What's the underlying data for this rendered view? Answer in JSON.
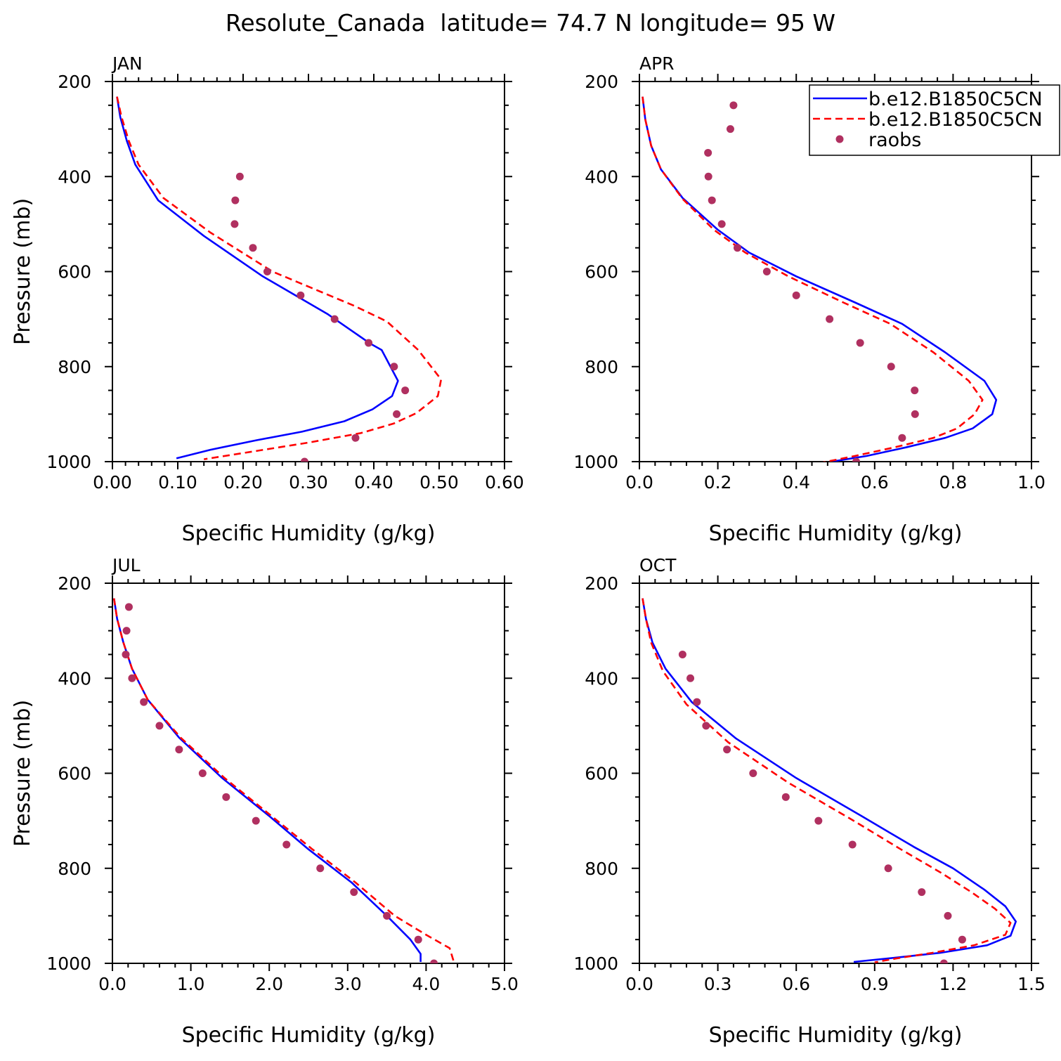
{
  "figure_title": "Resolute_Canada  latitude= 74.7 N longitude= 95 W",
  "legend": {
    "entries": [
      {
        "label": "b.e12.B1850C5CN",
        "style": "line",
        "color": "#0000ff"
      },
      {
        "label": "b.e12.B1850C5CN",
        "style": "dash",
        "color": "#ff0000"
      },
      {
        "label": "raobs",
        "style": "marker",
        "color": "#b03060"
      }
    ]
  },
  "chart_data": [
    {
      "type": "line",
      "panel_label": "JAN",
      "xlabel": "Specific Humidity (g/kg)",
      "ylabel": "Pressure (mb)",
      "xlim": [
        0,
        0.6
      ],
      "ylim": [
        200,
        1000
      ],
      "y_inverted": true,
      "xticks": [
        0,
        0.1,
        0.2,
        0.3,
        0.4,
        0.5,
        0.6
      ],
      "xtick_labels": [
        "0.00",
        "0.10",
        "0.20",
        "0.30",
        "0.40",
        "0.50",
        "0.60"
      ],
      "yticks": [
        200,
        400,
        600,
        800,
        1000
      ],
      "ytick_labels": [
        "200",
        "400",
        "600",
        "800",
        "1000"
      ],
      "series": [
        {
          "style": "line",
          "color": "#0000ff",
          "points": [
            [
              0.007,
              232
            ],
            [
              0.012,
              275
            ],
            [
              0.022,
              325
            ],
            [
              0.035,
              375
            ],
            [
              0.07,
              450
            ],
            [
              0.14,
              525
            ],
            [
              0.23,
              610
            ],
            [
              0.33,
              690
            ],
            [
              0.395,
              752
            ],
            [
              0.412,
              765
            ],
            [
              0.437,
              830
            ],
            [
              0.428,
              862
            ],
            [
              0.398,
              890
            ],
            [
              0.355,
              915
            ],
            [
              0.29,
              937
            ],
            [
              0.22,
              955
            ],
            [
              0.15,
              975
            ],
            [
              0.098,
              993
            ]
          ]
        },
        {
          "style": "dash",
          "color": "#ff0000",
          "points": [
            [
              0.007,
              232
            ],
            [
              0.014,
              275
            ],
            [
              0.025,
              325
            ],
            [
              0.04,
              375
            ],
            [
              0.078,
              445
            ],
            [
              0.15,
              518
            ],
            [
              0.245,
              600
            ],
            [
              0.37,
              672
            ],
            [
              0.42,
              705
            ],
            [
              0.468,
              765
            ],
            [
              0.503,
              827
            ],
            [
              0.498,
              862
            ],
            [
              0.465,
              898
            ],
            [
              0.43,
              920
            ],
            [
              0.38,
              940
            ],
            [
              0.3,
              960
            ],
            [
              0.2,
              982
            ],
            [
              0.14,
              995
            ]
          ]
        },
        {
          "style": "marker",
          "color": "#b03060",
          "points": [
            [
              0.195,
              400
            ],
            [
              0.188,
              450
            ],
            [
              0.187,
              500
            ],
            [
              0.215,
              550
            ],
            [
              0.237,
              600
            ],
            [
              0.288,
              650
            ],
            [
              0.34,
              700
            ],
            [
              0.392,
              750
            ],
            [
              0.431,
              800
            ],
            [
              0.448,
              850
            ],
            [
              0.435,
              900
            ],
            [
              0.372,
              950
            ],
            [
              0.294,
              1000
            ]
          ]
        }
      ]
    },
    {
      "type": "line",
      "panel_label": "APR",
      "xlabel": "Specific Humidity (g/kg)",
      "ylabel": "",
      "xlim": [
        0,
        1.0
      ],
      "ylim": [
        200,
        1000
      ],
      "y_inverted": true,
      "xticks": [
        0,
        0.2,
        0.4,
        0.6,
        0.8,
        1.0
      ],
      "xtick_labels": [
        "0.0",
        "0.2",
        "0.4",
        "0.6",
        "0.8",
        "1.0"
      ],
      "yticks": [
        200,
        400,
        600,
        800,
        1000
      ],
      "ytick_labels": [
        "200",
        "400",
        "600",
        "800",
        "1000"
      ],
      "series": [
        {
          "style": "line",
          "color": "#0000ff",
          "points": [
            [
              0.008,
              232
            ],
            [
              0.015,
              280
            ],
            [
              0.03,
              335
            ],
            [
              0.055,
              385
            ],
            [
              0.11,
              445
            ],
            [
              0.2,
              512
            ],
            [
              0.28,
              560
            ],
            [
              0.4,
              610
            ],
            [
              0.55,
              665
            ],
            [
              0.67,
              710
            ],
            [
              0.78,
              770
            ],
            [
              0.88,
              830
            ],
            [
              0.91,
              870
            ],
            [
              0.9,
              900
            ],
            [
              0.85,
              930
            ],
            [
              0.78,
              950
            ],
            [
              0.68,
              970
            ],
            [
              0.58,
              988
            ],
            [
              0.49,
              1000
            ]
          ]
        },
        {
          "style": "dash",
          "color": "#ff0000",
          "points": [
            [
              0.008,
              232
            ],
            [
              0.015,
              280
            ],
            [
              0.03,
              335
            ],
            [
              0.055,
              385
            ],
            [
              0.11,
              447
            ],
            [
              0.19,
              512
            ],
            [
              0.27,
              560
            ],
            [
              0.38,
              610
            ],
            [
              0.52,
              665
            ],
            [
              0.64,
              710
            ],
            [
              0.75,
              770
            ],
            [
              0.84,
              830
            ],
            [
              0.875,
              870
            ],
            [
              0.855,
              900
            ],
            [
              0.81,
              930
            ],
            [
              0.75,
              950
            ],
            [
              0.65,
              970
            ],
            [
              0.55,
              988
            ],
            [
              0.46,
              1003
            ]
          ]
        },
        {
          "style": "marker",
          "color": "#b03060",
          "points": [
            [
              0.24,
              250
            ],
            [
              0.232,
              300
            ],
            [
              0.175,
              350
            ],
            [
              0.176,
              400
            ],
            [
              0.185,
              450
            ],
            [
              0.21,
              500
            ],
            [
              0.25,
              550
            ],
            [
              0.325,
              600
            ],
            [
              0.4,
              650
            ],
            [
              0.485,
              700
            ],
            [
              0.563,
              750
            ],
            [
              0.642,
              800
            ],
            [
              0.702,
              850
            ],
            [
              0.703,
              900
            ],
            [
              0.67,
              950
            ],
            [
              0.553,
              1000
            ]
          ]
        }
      ]
    },
    {
      "type": "line",
      "panel_label": "JUL",
      "xlabel": "Specific Humidity (g/kg)",
      "ylabel": "Pressure (mb)",
      "xlim": [
        0,
        5.0
      ],
      "ylim": [
        200,
        1000
      ],
      "y_inverted": true,
      "xticks": [
        0,
        1,
        2,
        3,
        4,
        5
      ],
      "xtick_labels": [
        "0.0",
        "1.0",
        "2.0",
        "3.0",
        "4.0",
        "5.0"
      ],
      "yticks": [
        200,
        400,
        600,
        800,
        1000
      ],
      "ytick_labels": [
        "200",
        "400",
        "600",
        "800",
        "1000"
      ],
      "series": [
        {
          "style": "line",
          "color": "#0000ff",
          "points": [
            [
              0.02,
              232
            ],
            [
              0.06,
              275
            ],
            [
              0.14,
              325
            ],
            [
              0.25,
              380
            ],
            [
              0.45,
              445
            ],
            [
              0.85,
              525
            ],
            [
              1.4,
              610
            ],
            [
              2.0,
              690
            ],
            [
              2.5,
              760
            ],
            [
              3.05,
              830
            ],
            [
              3.5,
              900
            ],
            [
              3.8,
              950
            ],
            [
              3.93,
              980
            ],
            [
              3.93,
              997
            ]
          ]
        },
        {
          "style": "dash",
          "color": "#ff0000",
          "points": [
            [
              0.02,
              232
            ],
            [
              0.06,
              275
            ],
            [
              0.14,
              325
            ],
            [
              0.25,
              380
            ],
            [
              0.45,
              445
            ],
            [
              0.87,
              525
            ],
            [
              1.43,
              610
            ],
            [
              2.03,
              690
            ],
            [
              2.55,
              760
            ],
            [
              3.1,
              830
            ],
            [
              3.6,
              900
            ],
            [
              4.0,
              940
            ],
            [
              4.3,
              968
            ],
            [
              4.35,
              995
            ]
          ]
        },
        {
          "style": "marker",
          "color": "#b03060",
          "points": [
            [
              0.21,
              250
            ],
            [
              0.18,
              300
            ],
            [
              0.17,
              350
            ],
            [
              0.25,
              400
            ],
            [
              0.4,
              450
            ],
            [
              0.6,
              500
            ],
            [
              0.85,
              550
            ],
            [
              1.15,
              600
            ],
            [
              1.45,
              650
            ],
            [
              1.83,
              700
            ],
            [
              2.22,
              750
            ],
            [
              2.65,
              800
            ],
            [
              3.08,
              850
            ],
            [
              3.5,
              900
            ],
            [
              3.9,
              950
            ],
            [
              4.1,
              1000
            ]
          ]
        }
      ]
    },
    {
      "type": "line",
      "panel_label": "OCT",
      "xlabel": "Specific Humidity (g/kg)",
      "ylabel": "",
      "xlim": [
        0,
        1.5
      ],
      "ylim": [
        200,
        1000
      ],
      "y_inverted": true,
      "xticks": [
        0,
        0.3,
        0.6,
        0.9,
        1.2,
        1.5
      ],
      "xtick_labels": [
        "0.0",
        "0.3",
        "0.6",
        "0.9",
        "1.2",
        "1.5"
      ],
      "yticks": [
        200,
        400,
        600,
        800,
        1000
      ],
      "ytick_labels": [
        "200",
        "400",
        "600",
        "800",
        "1000"
      ],
      "series": [
        {
          "style": "line",
          "color": "#0000ff",
          "points": [
            [
              0.012,
              232
            ],
            [
              0.025,
              275
            ],
            [
              0.05,
              325
            ],
            [
              0.1,
              380
            ],
            [
              0.2,
              450
            ],
            [
              0.37,
              527
            ],
            [
              0.6,
              610
            ],
            [
              0.85,
              690
            ],
            [
              1.05,
              755
            ],
            [
              1.2,
              800
            ],
            [
              1.32,
              845
            ],
            [
              1.4,
              880
            ],
            [
              1.44,
              912
            ],
            [
              1.42,
              942
            ],
            [
              1.33,
              962
            ],
            [
              1.15,
              978
            ],
            [
              0.98,
              988
            ],
            [
              0.82,
              997
            ]
          ]
        },
        {
          "style": "dash",
          "color": "#ff0000",
          "points": [
            [
              0.012,
              232
            ],
            [
              0.025,
              275
            ],
            [
              0.045,
              325
            ],
            [
              0.09,
              385
            ],
            [
              0.18,
              455
            ],
            [
              0.34,
              535
            ],
            [
              0.57,
              620
            ],
            [
              0.82,
              700
            ],
            [
              1.0,
              760
            ],
            [
              1.15,
              808
            ],
            [
              1.27,
              850
            ],
            [
              1.36,
              885
            ],
            [
              1.42,
              915
            ],
            [
              1.4,
              940
            ],
            [
              1.28,
              962
            ],
            [
              1.12,
              978
            ],
            [
              0.98,
              990
            ],
            [
              0.9,
              998
            ]
          ]
        },
        {
          "style": "marker",
          "color": "#b03060",
          "points": [
            [
              0.165,
              350
            ],
            [
              0.195,
              400
            ],
            [
              0.22,
              450
            ],
            [
              0.255,
              500
            ],
            [
              0.335,
              550
            ],
            [
              0.435,
              600
            ],
            [
              0.56,
              650
            ],
            [
              0.685,
              700
            ],
            [
              0.815,
              750
            ],
            [
              0.952,
              800
            ],
            [
              1.08,
              850
            ],
            [
              1.18,
              900
            ],
            [
              1.235,
              950
            ],
            [
              1.165,
              1000
            ]
          ]
        }
      ]
    }
  ]
}
